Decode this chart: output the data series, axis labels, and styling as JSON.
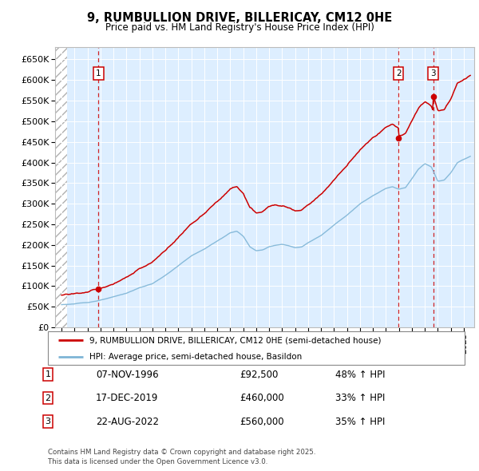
{
  "title": "9, RUMBULLION DRIVE, BILLERICAY, CM12 0HE",
  "subtitle": "Price paid vs. HM Land Registry's House Price Index (HPI)",
  "legend_line1": "9, RUMBULLION DRIVE, BILLERICAY, CM12 0HE (semi-detached house)",
  "legend_line2": "HPI: Average price, semi-detached house, Basildon",
  "transactions": [
    {
      "num": 1,
      "date": "07-NOV-1996",
      "year": 1996.85,
      "price": 92500,
      "hpi_change": "48% ↑ HPI"
    },
    {
      "num": 2,
      "date": "17-DEC-2019",
      "year": 2019.96,
      "price": 460000,
      "hpi_change": "33% ↑ HPI"
    },
    {
      "num": 3,
      "date": "22-AUG-2022",
      "year": 2022.64,
      "price": 560000,
      "hpi_change": "35% ↑ HPI"
    }
  ],
  "footer": "Contains HM Land Registry data © Crown copyright and database right 2025.\nThis data is licensed under the Open Government Licence v3.0.",
  "red_color": "#cc0000",
  "blue_color": "#7eb5d6",
  "bg_plot": "#ddeeff",
  "ylim": [
    0,
    680000
  ],
  "xlim_start": 1993.5,
  "xlim_end": 2025.8
}
